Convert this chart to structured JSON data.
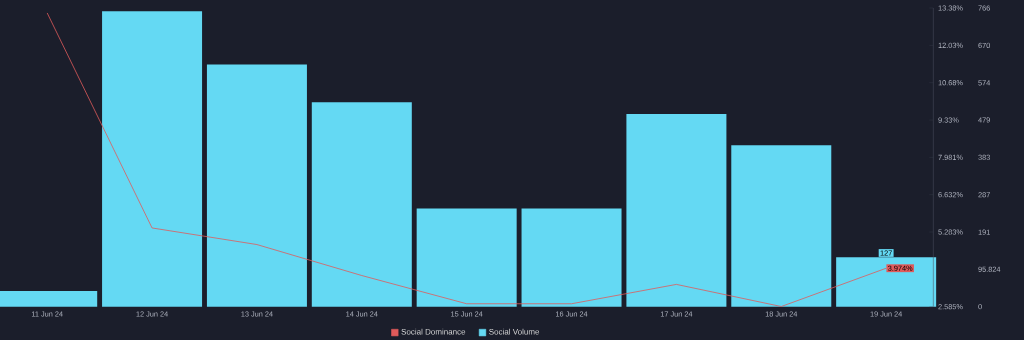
{
  "chart_data": {
    "type": "bar",
    "categories": [
      "11 Jun 24",
      "12 Jun 24",
      "13 Jun 24",
      "14 Jun 24",
      "15 Jun 24",
      "16 Jun 24",
      "17 Jun 24",
      "18 Jun 24",
      "19 Jun 24"
    ],
    "series": [
      {
        "name": "Social Dominance",
        "type": "line",
        "color": "#e05a5a",
        "values": [
          13.2,
          5.43,
          4.83,
          3.71,
          2.69,
          2.69,
          3.39,
          2.59,
          3.974
        ],
        "value_labels": [
          null,
          null,
          null,
          null,
          null,
          null,
          null,
          null,
          "3.974%"
        ]
      },
      {
        "name": "Social Volume",
        "axis": "y2",
        "color": "#64d9f3",
        "values": [
          40,
          758,
          621,
          524,
          252,
          252,
          494,
          414,
          127
        ],
        "value_labels": [
          null,
          null,
          null,
          null,
          null,
          null,
          null,
          null,
          "127"
        ]
      }
    ],
    "ylim": [
      2.585,
      13.38
    ],
    "yticks": [
      {
        "value": 2.585,
        "label": "2.585%"
      },
      {
        "value": 5.283,
        "label": "5.283%"
      },
      {
        "value": 6.632,
        "label": "6.632%"
      },
      {
        "value": 7.981,
        "label": "7.981%"
      },
      {
        "value": 9.33,
        "label": "9.33%"
      },
      {
        "value": 10.68,
        "label": "10.68%"
      },
      {
        "value": 12.03,
        "label": "12.03%"
      },
      {
        "value": 13.38,
        "label": "13.38%"
      }
    ],
    "y2lim": [
      0,
      766
    ],
    "y2ticks": [
      0,
      95.824,
      191,
      287,
      383,
      479,
      574,
      670,
      766
    ],
    "legend": "bottom"
  }
}
